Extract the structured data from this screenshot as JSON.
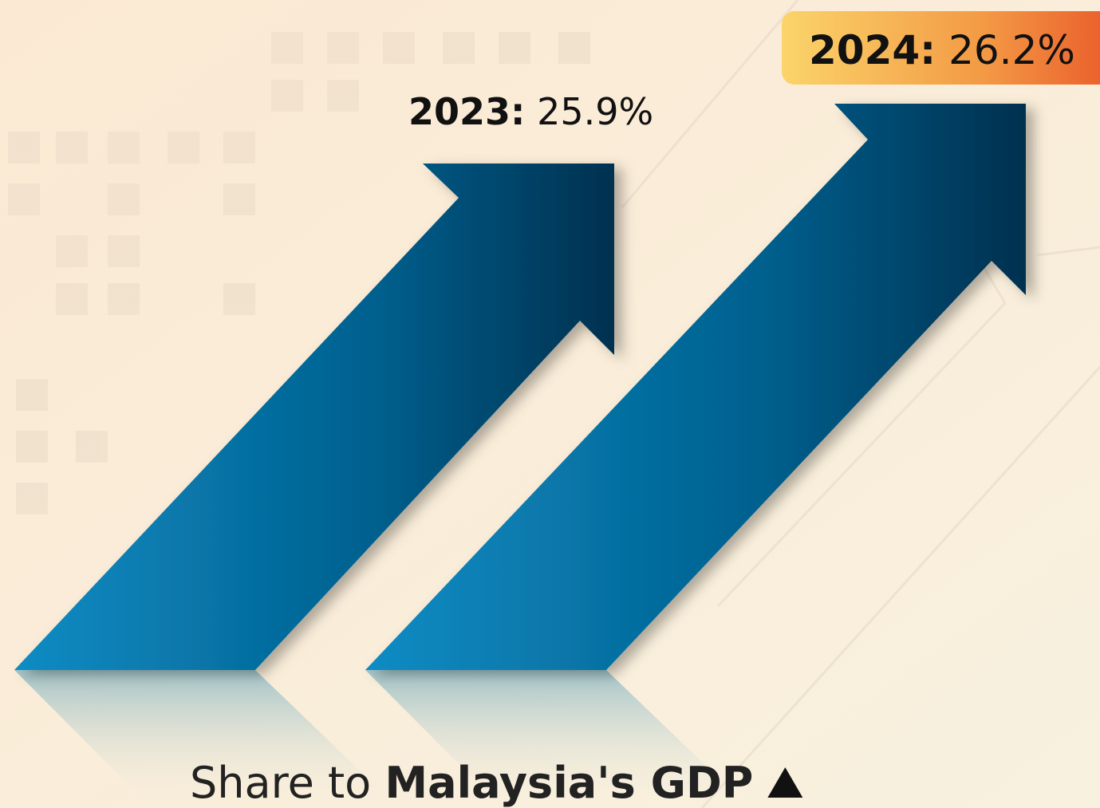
{
  "labels": [
    {
      "year": "2023:",
      "value": "25.9%"
    },
    {
      "year": "2024:",
      "value": "26.2%"
    }
  ],
  "caption": {
    "lead": "Share to",
    "subject": "Malaysia's GDP"
  }
}
